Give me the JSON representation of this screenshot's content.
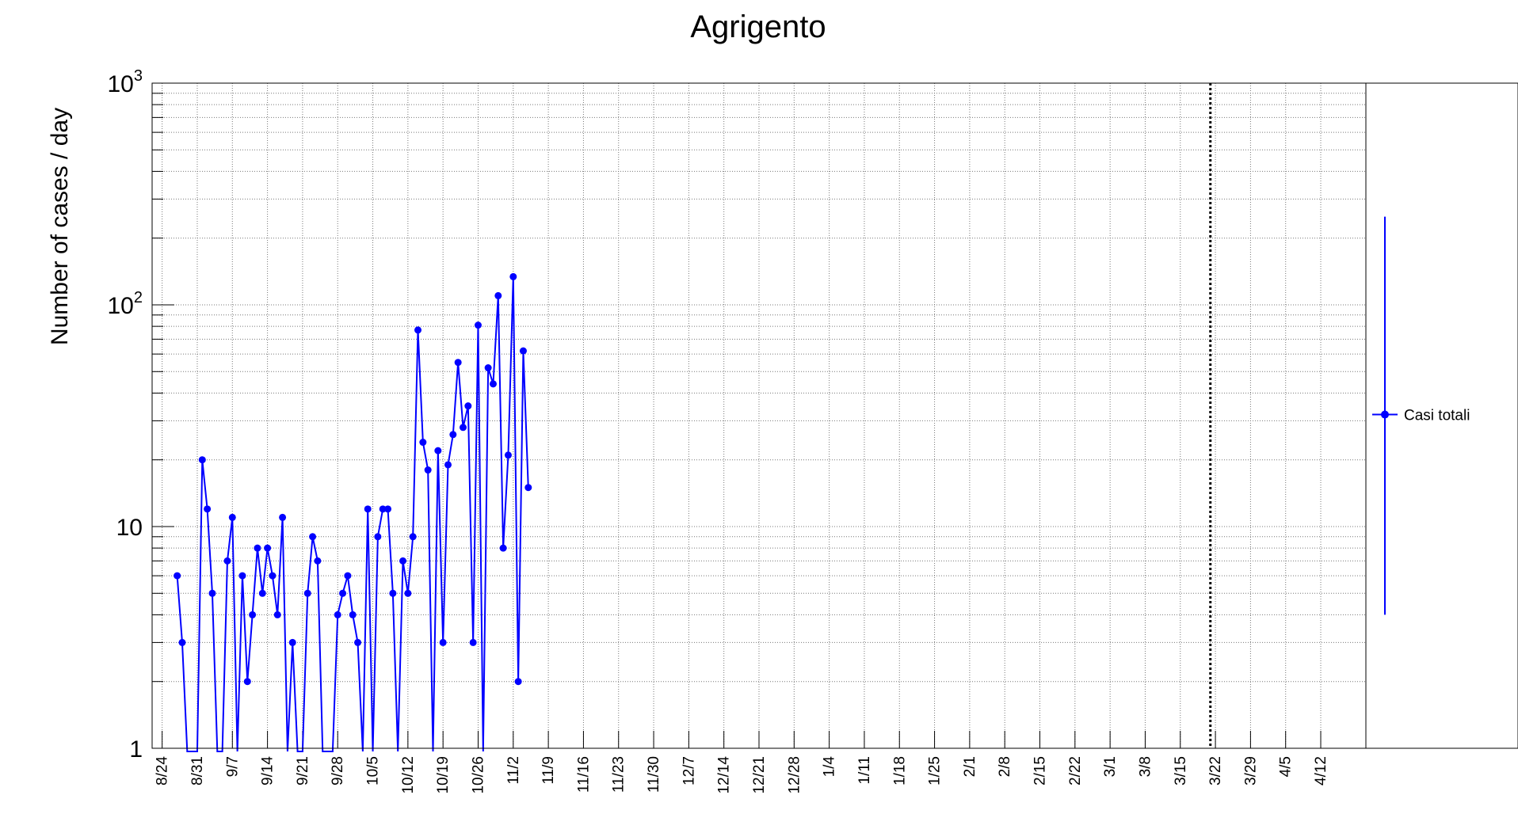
{
  "chart_data": {
    "type": "line",
    "title": "Agrigento",
    "ylabel": "Number of cases / day",
    "xlabel": "",
    "y_scale": "log",
    "ylim": [
      1,
      1000
    ],
    "y_ticks": [
      {
        "value": 1,
        "base": "1",
        "exp": ""
      },
      {
        "value": 10,
        "base": "10",
        "exp": ""
      },
      {
        "value": 100,
        "base": "10",
        "exp": "2"
      },
      {
        "value": 1000,
        "base": "10",
        "exp": "3"
      }
    ],
    "x_range": [
      "2020-08-22",
      "2021-04-21"
    ],
    "x_ticks": [
      {
        "date": "2020-08-24",
        "label": "8/24"
      },
      {
        "date": "2020-08-31",
        "label": "8/31"
      },
      {
        "date": "2020-09-07",
        "label": "9/7"
      },
      {
        "date": "2020-09-14",
        "label": "9/14"
      },
      {
        "date": "2020-09-21",
        "label": "9/21"
      },
      {
        "date": "2020-09-28",
        "label": "9/28"
      },
      {
        "date": "2020-10-05",
        "label": "10/5"
      },
      {
        "date": "2020-10-12",
        "label": "10/12"
      },
      {
        "date": "2020-10-19",
        "label": "10/19"
      },
      {
        "date": "2020-10-26",
        "label": "10/26"
      },
      {
        "date": "2020-11-02",
        "label": "11/2"
      },
      {
        "date": "2020-11-09",
        "label": "11/9"
      },
      {
        "date": "2020-11-16",
        "label": "11/16"
      },
      {
        "date": "2020-11-23",
        "label": "11/23"
      },
      {
        "date": "2020-11-30",
        "label": "11/30"
      },
      {
        "date": "2020-12-07",
        "label": "12/7"
      },
      {
        "date": "2020-12-14",
        "label": "12/14"
      },
      {
        "date": "2020-12-21",
        "label": "12/21"
      },
      {
        "date": "2020-12-28",
        "label": "12/28"
      },
      {
        "date": "2021-01-04",
        "label": "1/4"
      },
      {
        "date": "2021-01-11",
        "label": "1/11"
      },
      {
        "date": "2021-01-18",
        "label": "1/18"
      },
      {
        "date": "2021-01-25",
        "label": "1/25"
      },
      {
        "date": "2021-02-01",
        "label": "2/1"
      },
      {
        "date": "2021-02-08",
        "label": "2/8"
      },
      {
        "date": "2021-02-15",
        "label": "2/15"
      },
      {
        "date": "2021-02-22",
        "label": "2/22"
      },
      {
        "date": "2021-03-01",
        "label": "3/1"
      },
      {
        "date": "2021-03-08",
        "label": "3/8"
      },
      {
        "date": "2021-03-15",
        "label": "3/15"
      },
      {
        "date": "2021-03-22",
        "label": "3/22"
      },
      {
        "date": "2021-03-29",
        "label": "3/29"
      },
      {
        "date": "2021-04-05",
        "label": "4/5"
      },
      {
        "date": "2021-04-12",
        "label": "4/12"
      }
    ],
    "vertical_marker_date": "2021-03-21",
    "grid": true,
    "legend_position": "right",
    "series": [
      {
        "name": "Casi totali",
        "color": "#0000ff",
        "x": [
          "2020-08-27",
          "2020-08-28",
          "2020-08-29",
          "2020-08-30",
          "2020-08-31",
          "2020-09-01",
          "2020-09-02",
          "2020-09-03",
          "2020-09-04",
          "2020-09-05",
          "2020-09-06",
          "2020-09-07",
          "2020-09-08",
          "2020-09-09",
          "2020-09-10",
          "2020-09-11",
          "2020-09-12",
          "2020-09-13",
          "2020-09-14",
          "2020-09-15",
          "2020-09-16",
          "2020-09-17",
          "2020-09-18",
          "2020-09-19",
          "2020-09-20",
          "2020-09-21",
          "2020-09-22",
          "2020-09-23",
          "2020-09-24",
          "2020-09-25",
          "2020-09-26",
          "2020-09-27",
          "2020-09-28",
          "2020-09-29",
          "2020-09-30",
          "2020-10-01",
          "2020-10-02",
          "2020-10-03",
          "2020-10-04",
          "2020-10-05",
          "2020-10-06",
          "2020-10-07",
          "2020-10-08",
          "2020-10-09",
          "2020-10-10",
          "2020-10-11",
          "2020-10-12",
          "2020-10-13",
          "2020-10-14",
          "2020-10-15",
          "2020-10-16",
          "2020-10-17",
          "2020-10-18",
          "2020-10-19",
          "2020-10-20",
          "2020-10-21",
          "2020-10-22",
          "2020-10-23",
          "2020-10-24",
          "2020-10-25",
          "2020-10-26",
          "2020-10-27",
          "2020-10-28",
          "2020-10-29",
          "2020-10-30",
          "2020-10-31",
          "2020-11-01",
          "2020-11-02",
          "2020-11-03",
          "2020-11-04",
          "2020-11-05"
        ],
        "y": [
          6,
          3,
          0,
          0,
          0,
          20,
          12,
          5,
          0,
          0,
          7,
          11,
          0,
          6,
          2,
          4,
          8,
          5,
          8,
          6,
          4,
          11,
          0,
          3,
          0,
          0,
          5,
          9,
          7,
          0,
          0,
          0,
          4,
          5,
          6,
          4,
          3,
          0,
          12,
          0,
          9,
          12,
          12,
          5,
          0,
          7,
          5,
          9,
          77,
          24,
          18,
          0,
          22,
          3,
          19,
          26,
          55,
          28,
          35,
          3,
          81,
          0,
          52,
          44,
          110,
          8,
          21,
          134,
          2,
          62,
          15
        ]
      }
    ],
    "legend_error_bar": {
      "low": 4,
      "high": 250,
      "marker": 32
    }
  }
}
